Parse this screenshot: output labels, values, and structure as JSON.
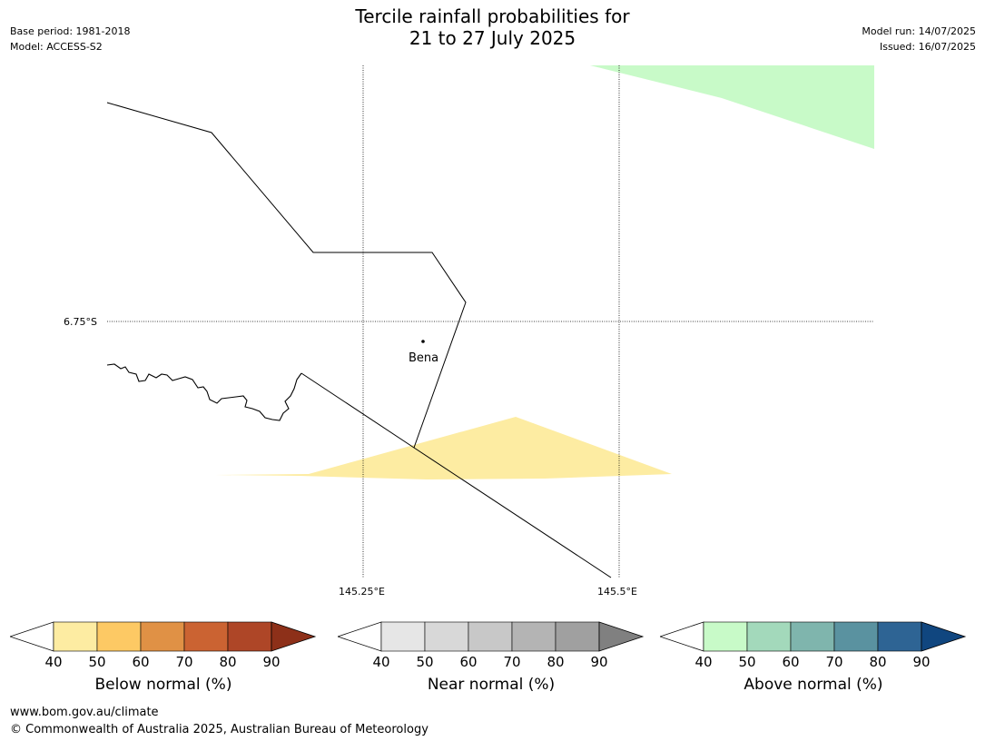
{
  "header": {
    "title_line1": "Tercile rainfall probabilities for",
    "title_line2": "21 to 27 July 2025",
    "base_period": "Base period: 1981-2018",
    "model": "Model: ACCESS-S2",
    "model_run": "Model run: 14/07/2025",
    "issued": "Issued: 16/07/2025"
  },
  "map": {
    "lat_label": "6.75°S",
    "lon_labels": [
      "145.25°E",
      "145.5°E"
    ],
    "place_label": "Bena",
    "colors": {
      "below_light": "#fdeca2",
      "above_light": "#c8fac8"
    }
  },
  "colorbars": [
    {
      "label": "Below normal (%)",
      "ticks": [
        "40",
        "50",
        "60",
        "70",
        "80",
        "90"
      ],
      "colors": [
        "#fdeca2",
        "#fdc964",
        "#e09145",
        "#cb6332",
        "#ae4627",
        "#8d3019"
      ]
    },
    {
      "label": "Near normal (%)",
      "ticks": [
        "40",
        "50",
        "60",
        "70",
        "80",
        "90"
      ],
      "colors": [
        "#e6e6e6",
        "#d8d8d8",
        "#c8c8c8",
        "#b4b4b4",
        "#a0a0a0",
        "#808080"
      ]
    },
    {
      "label": "Above normal (%)",
      "ticks": [
        "40",
        "50",
        "60",
        "70",
        "80",
        "90"
      ],
      "colors": [
        "#c8fac8",
        "#a3d9bb",
        "#7fb5ad",
        "#5a92a0",
        "#2e6494",
        "#10467f"
      ]
    }
  ],
  "footer": {
    "url": "www.bom.gov.au/climate",
    "copyright": "© Commonwealth of Australia 2025, Australian Bureau of Meteorology"
  }
}
